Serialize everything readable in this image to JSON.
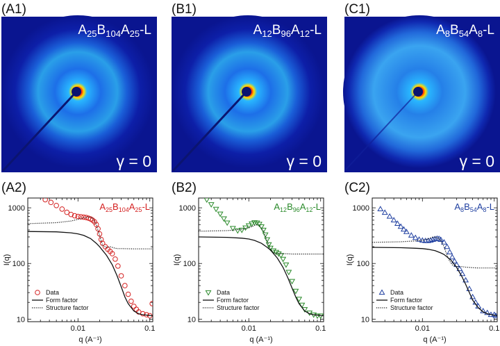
{
  "figure": {
    "panels_top": [
      {
        "label": "(A1)",
        "name_parts": [
          "A",
          "25",
          "B",
          "104",
          "A",
          "25",
          "-L"
        ],
        "gamma": "γ = 0",
        "ring": "strong",
        "streak": true
      },
      {
        "label": "(B1)",
        "name_parts": [
          "A",
          "12",
          "B",
          "96",
          "A",
          "12",
          "-L"
        ],
        "gamma": "γ = 0",
        "ring": "strong",
        "streak": true
      },
      {
        "label": "(C1)",
        "name_parts": [
          "A",
          "8",
          "B",
          "54",
          "A",
          "8",
          "-L"
        ],
        "gamma": "γ = 0",
        "ring": "diffuse",
        "streak": false
      }
    ],
    "colors": {
      "A": "#d42020",
      "B": "#2a8a2a",
      "C": "#1f3fa0",
      "detector_bg": "#0a1590"
    }
  },
  "chart_data": [
    {
      "type": "scatter",
      "panel_label": "(A2)",
      "name_parts": [
        "A",
        "25",
        "B",
        "104",
        "A",
        "25",
        "-L"
      ],
      "xlabel": "q (A⁻¹)",
      "ylabel": "I(q)",
      "xscale": "log",
      "yscale": "log",
      "xlim": [
        0.002,
        0.11
      ],
      "ylim": [
        9,
        1500
      ],
      "xticks": [
        {
          "v": 0.01,
          "label": "0.01"
        },
        {
          "v": 0.1,
          "label": "0.1"
        }
      ],
      "yticks": [
        {
          "v": 10,
          "label": "10"
        },
        {
          "v": 100,
          "label": "100"
        },
        {
          "v": 1000,
          "label": "1000"
        }
      ],
      "legend": [
        "Data",
        "Form factor",
        "Structure factor"
      ],
      "legend_position": "bottom-left",
      "marker": "circle",
      "series": [
        {
          "name": "Data",
          "style": "markers",
          "points": [
            [
              0.0035,
              1400
            ],
            [
              0.0042,
              1250
            ],
            [
              0.005,
              1100
            ],
            [
              0.006,
              950
            ],
            [
              0.007,
              830
            ],
            [
              0.008,
              760
            ],
            [
              0.009,
              720
            ],
            [
              0.01,
              700
            ],
            [
              0.011,
              690
            ],
            [
              0.012,
              680
            ],
            [
              0.013,
              670
            ],
            [
              0.014,
              650
            ],
            [
              0.015,
              630
            ],
            [
              0.016,
              600
            ],
            [
              0.017,
              560
            ],
            [
              0.018,
              500
            ],
            [
              0.019,
              420
            ],
            [
              0.02,
              340
            ],
            [
              0.021,
              270
            ],
            [
              0.022,
              230
            ],
            [
              0.024,
              200
            ],
            [
              0.026,
              180
            ],
            [
              0.028,
              165
            ],
            [
              0.03,
              150
            ],
            [
              0.033,
              120
            ],
            [
              0.036,
              90
            ],
            [
              0.04,
              60
            ],
            [
              0.045,
              40
            ],
            [
              0.05,
              28
            ],
            [
              0.055,
              21
            ],
            [
              0.06,
              17
            ],
            [
              0.065,
              15
            ],
            [
              0.07,
              13.5
            ],
            [
              0.08,
              12.5
            ],
            [
              0.09,
              12
            ],
            [
              0.1,
              11.5
            ],
            [
              0.108,
              19
            ]
          ]
        },
        {
          "name": "Form factor",
          "style": "solid",
          "points": [
            [
              0.002,
              375
            ],
            [
              0.005,
              370
            ],
            [
              0.008,
              355
            ],
            [
              0.01,
              340
            ],
            [
              0.012,
              320
            ],
            [
              0.015,
              280
            ],
            [
              0.018,
              230
            ],
            [
              0.02,
              200
            ],
            [
              0.025,
              140
            ],
            [
              0.03,
              95
            ],
            [
              0.035,
              60
            ],
            [
              0.04,
              38
            ],
            [
              0.045,
              25
            ],
            [
              0.05,
              19
            ],
            [
              0.06,
              14
            ],
            [
              0.07,
              12.5
            ],
            [
              0.08,
              12
            ],
            [
              0.11,
              11.5
            ]
          ]
        },
        {
          "name": "Structure factor",
          "style": "dotted",
          "points": [
            [
              0.002,
              520
            ],
            [
              0.005,
              540
            ],
            [
              0.008,
              580
            ],
            [
              0.01,
              620
            ],
            [
              0.012,
              660
            ],
            [
              0.014,
              690
            ],
            [
              0.016,
              660
            ],
            [
              0.018,
              500
            ],
            [
              0.02,
              320
            ],
            [
              0.022,
              210
            ],
            [
              0.025,
              195
            ],
            [
              0.028,
              200
            ],
            [
              0.032,
              190
            ],
            [
              0.035,
              185
            ],
            [
              0.04,
              185
            ],
            [
              0.06,
              183
            ],
            [
              0.08,
              183
            ],
            [
              0.11,
              183
            ]
          ]
        }
      ]
    },
    {
      "type": "scatter",
      "panel_label": "(B2)",
      "name_parts": [
        "A",
        "12",
        "B",
        "96",
        "A",
        "12",
        "-L"
      ],
      "xlabel": "q (A⁻¹)",
      "ylabel": "I(q)",
      "xscale": "log",
      "yscale": "log",
      "xlim": [
        0.002,
        0.11
      ],
      "ylim": [
        9,
        1500
      ],
      "xticks": [
        {
          "v": 0.01,
          "label": "0.01"
        },
        {
          "v": 0.1,
          "label": "0.1"
        }
      ],
      "yticks": [
        {
          "v": 10,
          "label": "10"
        },
        {
          "v": 100,
          "label": "100"
        },
        {
          "v": 1000,
          "label": "1000"
        }
      ],
      "legend": [
        "Data",
        "Form factor",
        "Structure factor"
      ],
      "legend_position": "bottom-left",
      "marker": "triangle-down",
      "series": [
        {
          "name": "Data",
          "style": "markers",
          "points": [
            [
              0.0026,
              1400
            ],
            [
              0.003,
              1150
            ],
            [
              0.0035,
              950
            ],
            [
              0.004,
              780
            ],
            [
              0.0045,
              640
            ],
            [
              0.005,
              540
            ],
            [
              0.006,
              430
            ],
            [
              0.007,
              390
            ],
            [
              0.008,
              400
            ],
            [
              0.009,
              440
            ],
            [
              0.01,
              480
            ],
            [
              0.011,
              520
            ],
            [
              0.012,
              545
            ],
            [
              0.013,
              540
            ],
            [
              0.014,
              510
            ],
            [
              0.015,
              460
            ],
            [
              0.016,
              400
            ],
            [
              0.017,
              330
            ],
            [
              0.018,
              270
            ],
            [
              0.019,
              220
            ],
            [
              0.02,
              190
            ],
            [
              0.022,
              170
            ],
            [
              0.024,
              160
            ],
            [
              0.026,
              150
            ],
            [
              0.028,
              140
            ],
            [
              0.03,
              120
            ],
            [
              0.033,
              95
            ],
            [
              0.036,
              70
            ],
            [
              0.04,
              48
            ],
            [
              0.045,
              32
            ],
            [
              0.05,
              23
            ],
            [
              0.055,
              18
            ],
            [
              0.06,
              15
            ],
            [
              0.07,
              13
            ],
            [
              0.08,
              12
            ],
            [
              0.09,
              11.5
            ],
            [
              0.1,
              11.5
            ]
          ]
        },
        {
          "name": "Form factor",
          "style": "solid",
          "points": [
            [
              0.002,
              300
            ],
            [
              0.005,
              295
            ],
            [
              0.008,
              285
            ],
            [
              0.01,
              275
            ],
            [
              0.012,
              260
            ],
            [
              0.015,
              230
            ],
            [
              0.018,
              195
            ],
            [
              0.02,
              175
            ],
            [
              0.025,
              125
            ],
            [
              0.03,
              85
            ],
            [
              0.035,
              55
            ],
            [
              0.04,
              36
            ],
            [
              0.045,
              25
            ],
            [
              0.05,
              19
            ],
            [
              0.06,
              14
            ],
            [
              0.07,
              12.5
            ],
            [
              0.08,
              12
            ],
            [
              0.11,
              11.5
            ]
          ]
        },
        {
          "name": "Structure factor",
          "style": "dotted",
          "points": [
            [
              0.002,
              380
            ],
            [
              0.005,
              390
            ],
            [
              0.008,
              410
            ],
            [
              0.01,
              440
            ],
            [
              0.012,
              480
            ],
            [
              0.013,
              500
            ],
            [
              0.014,
              480
            ],
            [
              0.016,
              380
            ],
            [
              0.018,
              250
            ],
            [
              0.02,
              180
            ],
            [
              0.022,
              155
            ],
            [
              0.025,
              150
            ],
            [
              0.03,
              150
            ],
            [
              0.04,
              148
            ],
            [
              0.06,
              148
            ],
            [
              0.08,
              148
            ],
            [
              0.11,
              148
            ]
          ]
        }
      ]
    },
    {
      "type": "scatter",
      "panel_label": "(C2)",
      "name_parts": [
        "A",
        "8",
        "B",
        "54",
        "A",
        "8",
        "-L"
      ],
      "xlabel": "q (A⁻¹)",
      "ylabel": "I(q)",
      "xscale": "log",
      "yscale": "log",
      "xlim": [
        0.002,
        0.11
      ],
      "ylim": [
        9,
        1500
      ],
      "xticks": [
        {
          "v": 0.01,
          "label": "0.01"
        },
        {
          "v": 0.1,
          "label": "0.1"
        }
      ],
      "yticks": [
        {
          "v": 10,
          "label": "10"
        },
        {
          "v": 100,
          "label": "100"
        },
        {
          "v": 1000,
          "label": "1000"
        }
      ],
      "legend": [
        "Data",
        "Form factor",
        "Structure factor"
      ],
      "legend_position": "bottom-left",
      "marker": "triangle-up",
      "series": [
        {
          "name": "Data",
          "style": "markers",
          "points": [
            [
              0.0026,
              950
            ],
            [
              0.003,
              820
            ],
            [
              0.0035,
              700
            ],
            [
              0.004,
              600
            ],
            [
              0.0045,
              520
            ],
            [
              0.005,
              460
            ],
            [
              0.0055,
              410
            ],
            [
              0.006,
              370
            ],
            [
              0.007,
              320
            ],
            [
              0.008,
              290
            ],
            [
              0.009,
              270
            ],
            [
              0.01,
              260
            ],
            [
              0.011,
              255
            ],
            [
              0.012,
              255
            ],
            [
              0.013,
              260
            ],
            [
              0.014,
              268
            ],
            [
              0.015,
              275
            ],
            [
              0.016,
              280
            ],
            [
              0.017,
              278
            ],
            [
              0.018,
              268
            ],
            [
              0.02,
              240
            ],
            [
              0.022,
              200
            ],
            [
              0.024,
              160
            ],
            [
              0.026,
              130
            ],
            [
              0.028,
              110
            ],
            [
              0.03,
              95
            ],
            [
              0.033,
              80
            ],
            [
              0.036,
              65
            ],
            [
              0.04,
              50
            ],
            [
              0.045,
              35
            ],
            [
              0.05,
              25
            ],
            [
              0.055,
              20
            ],
            [
              0.06,
              17
            ],
            [
              0.07,
              14
            ],
            [
              0.08,
              13
            ],
            [
              0.09,
              12
            ],
            [
              0.1,
              12
            ],
            [
              0.105,
              11.5
            ]
          ]
        },
        {
          "name": "Form factor",
          "style": "solid",
          "points": [
            [
              0.002,
              195
            ],
            [
              0.005,
              192
            ],
            [
              0.008,
              188
            ],
            [
              0.01,
              185
            ],
            [
              0.012,
              180
            ],
            [
              0.015,
              170
            ],
            [
              0.018,
              155
            ],
            [
              0.02,
              145
            ],
            [
              0.025,
              115
            ],
            [
              0.03,
              85
            ],
            [
              0.035,
              60
            ],
            [
              0.04,
              42
            ],
            [
              0.045,
              30
            ],
            [
              0.05,
              22
            ],
            [
              0.06,
              16
            ],
            [
              0.07,
              13.5
            ],
            [
              0.08,
              12.5
            ],
            [
              0.11,
              11.5
            ]
          ]
        },
        {
          "name": "Structure factor",
          "style": "dotted",
          "points": [
            [
              0.002,
              240
            ],
            [
              0.005,
              245
            ],
            [
              0.008,
              255
            ],
            [
              0.01,
              262
            ],
            [
              0.012,
              275
            ],
            [
              0.014,
              300
            ],
            [
              0.016,
              295
            ],
            [
              0.018,
              260
            ],
            [
              0.02,
              200
            ],
            [
              0.022,
              140
            ],
            [
              0.024,
              110
            ],
            [
              0.026,
              95
            ],
            [
              0.028,
              90
            ],
            [
              0.03,
              88
            ],
            [
              0.035,
              88
            ],
            [
              0.04,
              86
            ],
            [
              0.05,
              84
            ],
            [
              0.06,
              83
            ],
            [
              0.08,
              83
            ],
            [
              0.11,
              83
            ]
          ]
        }
      ]
    }
  ]
}
